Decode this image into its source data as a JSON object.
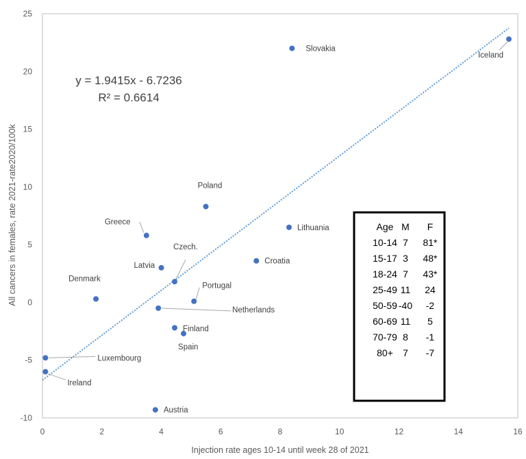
{
  "chart_data": {
    "type": "scatter",
    "title": "",
    "xlabel": "Injection rate ages 10-14 until week 28 of 2021",
    "ylabel": "All cancers in females, rate 2021-rate2020/100k",
    "xlim": [
      0,
      16
    ],
    "ylim": [
      -10,
      25
    ],
    "x_ticks": [
      0,
      2,
      4,
      6,
      8,
      10,
      12,
      14,
      16
    ],
    "y_ticks": [
      -10,
      -5,
      0,
      5,
      10,
      15,
      20,
      25
    ],
    "grid": false,
    "legend": "none",
    "marker_color": "#4472C4",
    "trendline_color": "#5B9BD5",
    "points": [
      {
        "label": "Slovakia",
        "x": 8.4,
        "y": 22.0
      },
      {
        "label": "Iceland",
        "x": 15.7,
        "y": 22.8
      },
      {
        "label": "Poland",
        "x": 5.5,
        "y": 8.3
      },
      {
        "label": "Lithuania",
        "x": 8.3,
        "y": 6.5
      },
      {
        "label": "Greece",
        "x": 3.5,
        "y": 5.8
      },
      {
        "label": "Croatia",
        "x": 7.2,
        "y": 3.6
      },
      {
        "label": "Latvia",
        "x": 4.0,
        "y": 3.0
      },
      {
        "label": "Czech.",
        "x": 4.45,
        "y": 1.8
      },
      {
        "label": "Denmark",
        "x": 1.8,
        "y": 0.3
      },
      {
        "label": "Portugal",
        "x": 5.1,
        "y": 0.1
      },
      {
        "label": "Netherlands",
        "x": 3.9,
        "y": -0.5
      },
      {
        "label": "Finland",
        "x": 4.45,
        "y": -2.2
      },
      {
        "label": "Spain",
        "x": 4.75,
        "y": -2.7
      },
      {
        "label": "Luxembourg",
        "x": 0.1,
        "y": -4.8
      },
      {
        "label": "Ireland",
        "x": 0.1,
        "y": -6.0
      },
      {
        "label": "Austria",
        "x": 3.8,
        "y": -9.3
      }
    ],
    "trendline": {
      "type": "linear",
      "slope": 1.9415,
      "intercept": -6.7236,
      "x_range": [
        0,
        15.7
      ],
      "equation_text": "y = 1.9415x - 6.7236",
      "r2_text": "R² = 0.6614"
    },
    "inset_table": {
      "headers": [
        "Age",
        "M",
        "F"
      ],
      "rows": [
        [
          "10-14",
          "7",
          "81*"
        ],
        [
          "15-17",
          "3",
          "48*"
        ],
        [
          "18-24",
          "7",
          "43*"
        ],
        [
          "25-49",
          "11",
          "24"
        ],
        [
          "50-59",
          "-40",
          "-2"
        ],
        [
          "60-69",
          "11",
          "5"
        ],
        [
          "70-79",
          "8",
          "-1"
        ],
        [
          "80+",
          "7",
          "-7"
        ]
      ]
    }
  }
}
